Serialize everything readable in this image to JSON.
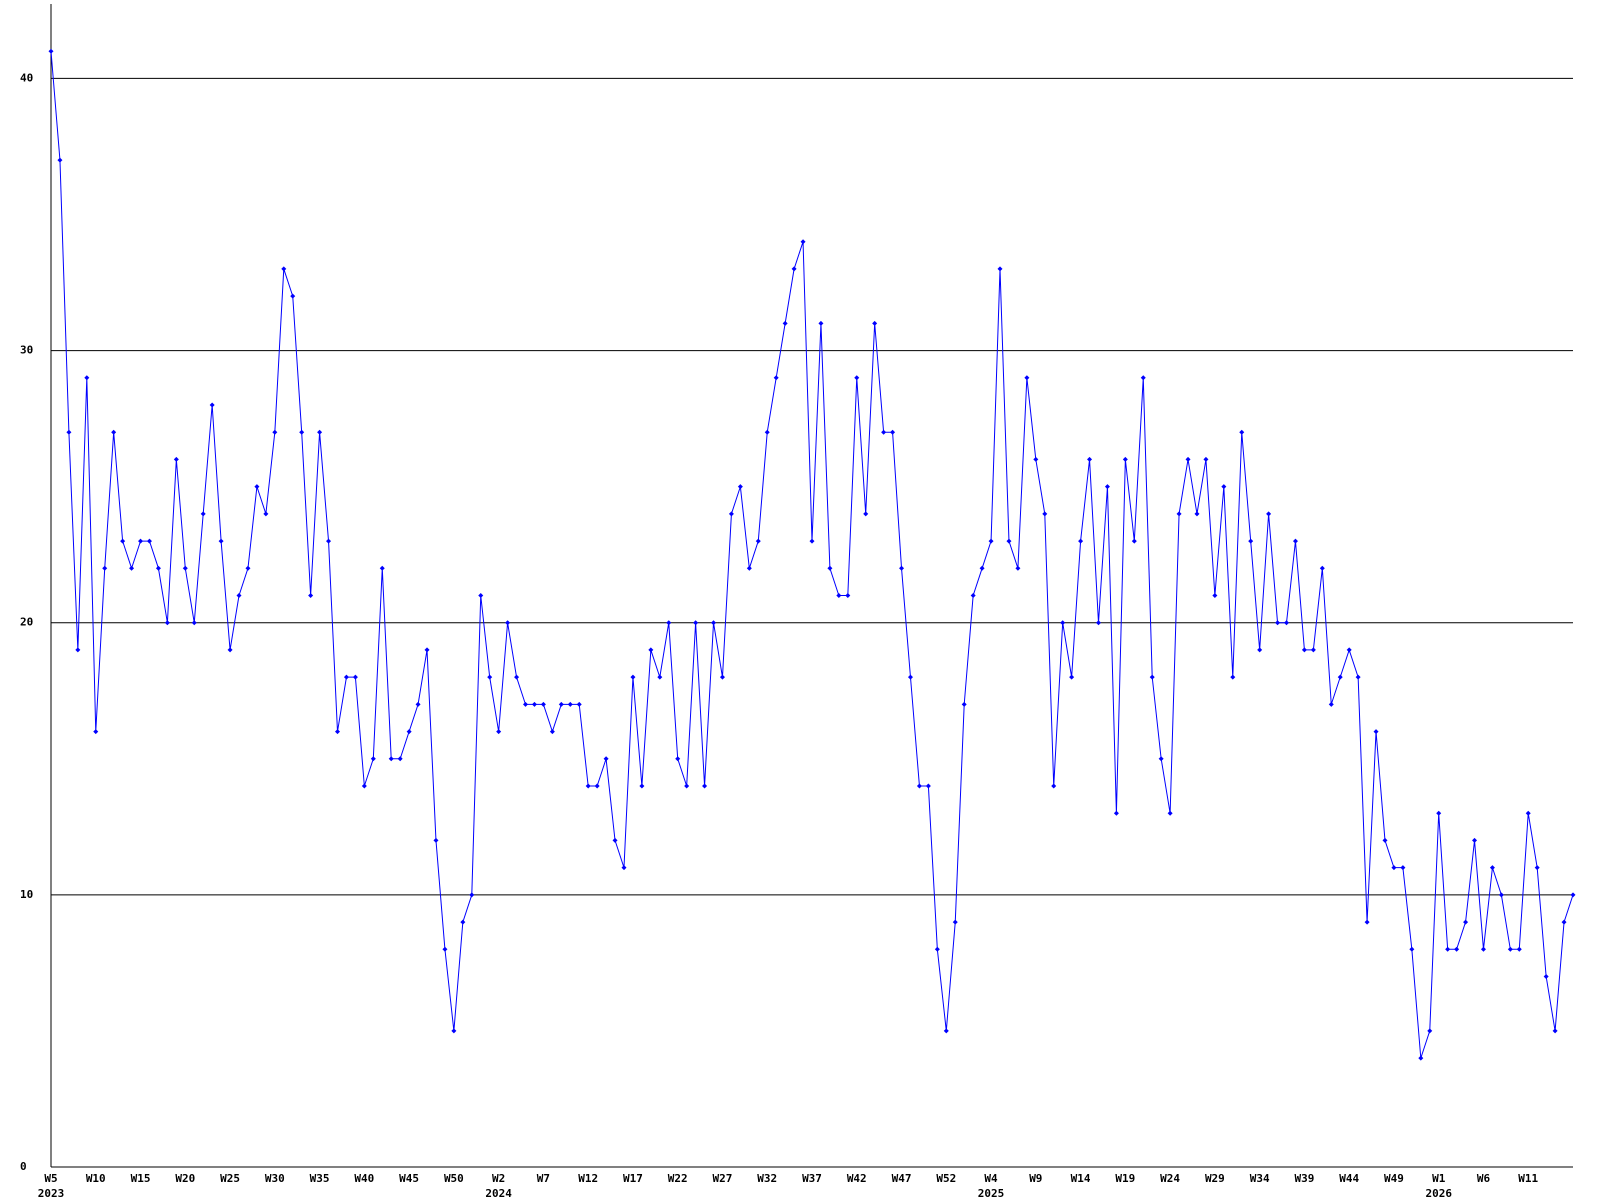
{
  "chart_data": {
    "type": "line",
    "categories": [
      "W5",
      null,
      null,
      null,
      null,
      "W10",
      null,
      null,
      null,
      null,
      "W15",
      null,
      null,
      null,
      null,
      "W20",
      null,
      null,
      null,
      null,
      "W25",
      null,
      null,
      null,
      null,
      "W30",
      null,
      null,
      null,
      null,
      "W35",
      null,
      null,
      null,
      null,
      "W40",
      null,
      null,
      null,
      null,
      "W45",
      null,
      null,
      null,
      null,
      "W50",
      null,
      null,
      null,
      null,
      "W2",
      null,
      null,
      null,
      null,
      "W7",
      null,
      null,
      null,
      null,
      "W12",
      null,
      null,
      null,
      null,
      "W17",
      null,
      null,
      null,
      null,
      "W22",
      null,
      null,
      null,
      null,
      "W27",
      null,
      null,
      null,
      null,
      "W32",
      null,
      null,
      null,
      null,
      "W37",
      null,
      null,
      null,
      null,
      "W42",
      null,
      null,
      null,
      null,
      "W47",
      null,
      null,
      null,
      null,
      "W52",
      null,
      null,
      null,
      null,
      "W4",
      null,
      null,
      null,
      null,
      "W9",
      null,
      null,
      null,
      null,
      "W14",
      null,
      null,
      null,
      null,
      "W19",
      null,
      null,
      null,
      null,
      "W24",
      null,
      null,
      null,
      null,
      "W29",
      null,
      null,
      null,
      null,
      "W34",
      null,
      null,
      null,
      null,
      "W39",
      null,
      null,
      null,
      null,
      "W44",
      null,
      null,
      null,
      null,
      "W49",
      null,
      null,
      null,
      null,
      "W1",
      null,
      null,
      null,
      null,
      "W6",
      null,
      null,
      null,
      null,
      "W11",
      null,
      null,
      null,
      null,
      null
    ],
    "category_years": [
      "2023",
      null,
      null,
      null,
      null,
      null,
      null,
      null,
      null,
      null,
      null,
      null,
      null,
      null,
      null,
      null,
      null,
      null,
      null,
      null,
      null,
      null,
      null,
      null,
      null,
      null,
      null,
      null,
      null,
      null,
      null,
      null,
      null,
      null,
      null,
      null,
      null,
      null,
      null,
      null,
      null,
      null,
      null,
      null,
      null,
      null,
      null,
      null,
      null,
      null,
      "2024",
      null,
      null,
      null,
      null,
      null,
      null,
      null,
      null,
      null,
      null,
      null,
      null,
      null,
      null,
      null,
      null,
      null,
      null,
      null,
      null,
      null,
      null,
      null,
      null,
      null,
      null,
      null,
      null,
      null,
      null,
      null,
      null,
      null,
      null,
      null,
      null,
      null,
      null,
      null,
      null,
      null,
      null,
      null,
      null,
      null,
      null,
      null,
      null,
      null,
      null,
      null,
      null,
      null,
      null,
      "2025",
      null,
      null,
      null,
      null,
      null,
      null,
      null,
      null,
      null,
      null,
      null,
      null,
      null,
      null,
      null,
      null,
      null,
      null,
      null,
      null,
      null,
      null,
      null,
      null,
      null,
      null,
      null,
      null,
      null,
      null,
      null,
      null,
      null,
      null,
      null,
      null,
      null,
      null,
      null,
      null,
      null,
      null,
      null,
      null,
      null,
      null,
      null,
      null,
      null,
      "2026",
      null,
      null,
      null,
      null,
      null,
      null,
      null,
      null,
      null,
      null,
      null,
      null,
      null,
      null,
      null
    ],
    "series": [
      {
        "color": "#0000ff",
        "values": [
          41,
          37,
          27,
          19,
          29,
          16,
          22,
          27,
          23,
          22,
          23,
          23,
          22,
          20,
          26,
          22,
          20,
          24,
          28,
          23,
          19,
          21,
          22,
          25,
          24,
          27,
          33,
          32,
          27,
          21,
          27,
          23,
          16,
          18,
          18,
          14,
          15,
          22,
          15,
          15,
          16,
          17,
          19,
          12,
          8,
          5,
          9,
          10,
          21,
          18,
          16,
          20,
          18,
          17,
          17,
          17,
          16,
          17,
          17,
          17,
          14,
          14,
          15,
          12,
          11,
          18,
          14,
          19,
          18,
          20,
          15,
          14,
          20,
          14,
          20,
          18,
          24,
          25,
          22,
          23,
          27,
          29,
          31,
          33,
          34,
          23,
          31,
          22,
          21,
          21,
          29,
          24,
          31,
          27,
          27,
          22,
          18,
          14,
          14,
          8,
          5,
          9,
          17,
          21,
          22,
          23,
          33,
          23,
          22,
          29,
          26,
          24,
          14,
          20,
          18,
          23,
          26,
          20,
          25,
          13,
          26,
          23,
          29,
          18,
          15,
          13,
          24,
          26,
          24,
          26,
          21,
          25,
          18,
          27,
          23,
          19,
          24,
          20,
          20,
          23,
          19,
          19,
          22,
          17,
          18,
          19,
          18,
          9,
          16,
          12,
          11,
          11,
          8,
          4,
          5,
          13,
          8,
          8,
          9,
          12,
          8,
          11,
          10,
          8,
          8,
          13,
          11,
          7,
          5,
          9,
          10
        ]
      }
    ],
    "ylim": [
      0,
      42
    ],
    "yticks": [
      0,
      10,
      20,
      30,
      40
    ],
    "grid": true
  }
}
